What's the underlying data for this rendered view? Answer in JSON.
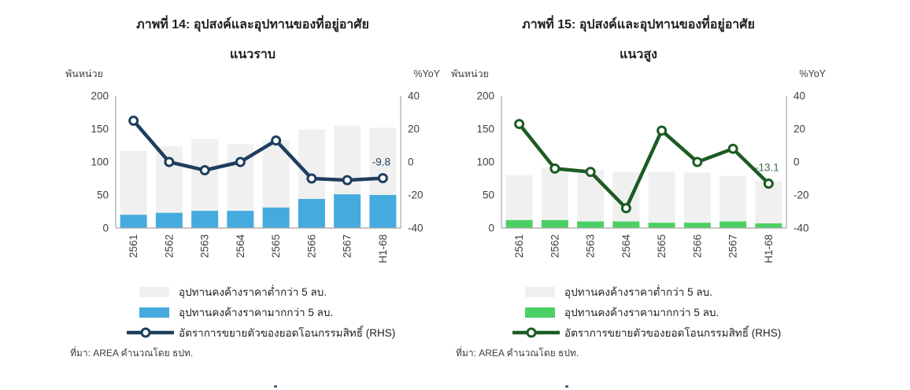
{
  "style": {
    "background": "#ffffff",
    "axis_line_color": "#a8a8a8",
    "tick_label_color": "#3f3f3f",
    "title_color": "#1f1f1f",
    "marker_fill": "#ffffff"
  },
  "chart_data": [
    {
      "type": "bar+line",
      "title": "ภาพที่ 14: อุปสงค์และอุปทานของที่อยู่อาศัย",
      "subtitle": "แนวราบ",
      "left_axis": {
        "unit": "พันหน่วย",
        "ticks": [
          0,
          50,
          100,
          150,
          200
        ],
        "range": [
          0,
          200
        ]
      },
      "right_axis": {
        "unit": "%YoY",
        "ticks": [
          -40,
          -20,
          0,
          20,
          40
        ],
        "range": [
          -40,
          40
        ]
      },
      "categories": [
        "2561",
        "2562",
        "2563",
        "2564",
        "2565",
        "2566",
        "2567",
        "H1-68"
      ],
      "series": [
        {
          "name": "อุปทานคงค้างราคาต่ำกว่า 5 ลบ.",
          "type": "bar",
          "axis": "left",
          "color": "#f0f0f0",
          "values": [
            117,
            124,
            135,
            127,
            133,
            149,
            155,
            152
          ]
        },
        {
          "name": "อุปทานคงค้างราคามากกว่า 5 ลบ.",
          "type": "bar",
          "axis": "left",
          "color": "#45abdf",
          "values": [
            20,
            23,
            26,
            26,
            31,
            44,
            51,
            50
          ]
        },
        {
          "name": "อัตราการขยายตัวของยอดโอนกรรมสิทธิ์ (RHS)",
          "type": "line",
          "axis": "right",
          "color": "#1e3e5f",
          "values": [
            25,
            0,
            -5,
            0,
            13,
            -10,
            -11,
            -9.8
          ]
        }
      ],
      "annotation": {
        "text": "-9.8",
        "index": 7,
        "value": -9.8,
        "color": "#1e3e5f"
      },
      "source": "ที่มา: AREA คำนวณโดย ธปท."
    },
    {
      "type": "bar+line",
      "title": "ภาพที่ 15: อุปสงค์และอุปทานของที่อยู่อาศัย",
      "subtitle": "แนวสูง",
      "left_axis": {
        "unit": "พันหน่วย",
        "ticks": [
          0,
          50,
          100,
          150,
          200
        ],
        "range": [
          0,
          200
        ]
      },
      "right_axis": {
        "unit": "%YoY",
        "ticks": [
          -40,
          -20,
          0,
          20,
          40
        ],
        "range": [
          -40,
          40
        ]
      },
      "categories": [
        "2561",
        "2562",
        "2563",
        "2564",
        "2565",
        "2566",
        "2567",
        "H1-68"
      ],
      "series": [
        {
          "name": "อุปทานคงค้างราคาต่ำกว่า 5 ลบ.",
          "type": "bar",
          "axis": "left",
          "color": "#f0f0f0",
          "values": [
            80,
            92,
            88,
            85,
            85,
            84,
            79,
            71
          ]
        },
        {
          "name": "อุปทานคงค้างราคามากกว่า 5 ลบ.",
          "type": "bar",
          "axis": "left",
          "color": "#4bd163",
          "values": [
            12,
            12,
            10,
            10,
            8,
            8,
            10,
            7
          ]
        },
        {
          "name": "อัตราการขยายตัวของยอดโอนกรรมสิทธิ์ (RHS)",
          "type": "line",
          "axis": "right",
          "color": "#1c5b24",
          "values": [
            23,
            -4,
            -6,
            -28,
            19,
            0,
            8,
            -13.1
          ]
        }
      ],
      "annotation": {
        "text": "-13.1",
        "index": 7,
        "value": -13.1,
        "color": "#44704c"
      },
      "source": "ที่มา: AREA คำนวณโดย ธปท."
    }
  ]
}
